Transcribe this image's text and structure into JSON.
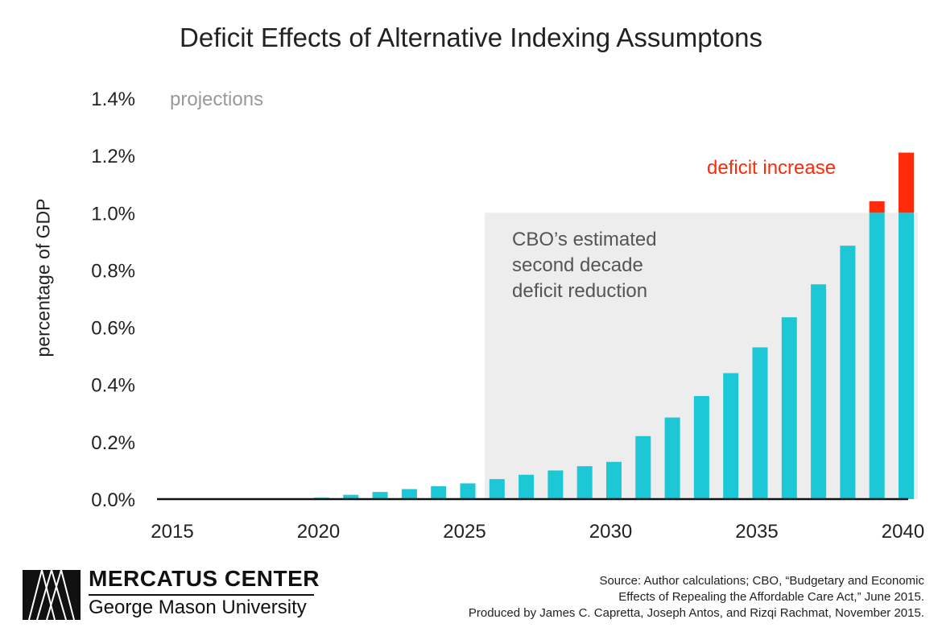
{
  "chart_data": {
    "type": "bar",
    "title": "Deficit Effects of Alternative Indexing Assumptons",
    "ylabel": "percentage of GDP",
    "xlabel": "",
    "ylim": [
      0,
      1.4
    ],
    "yticks": [
      "0.0%",
      "0.2%",
      "0.4%",
      "0.6%",
      "0.8%",
      "1.0%",
      "1.2%",
      "1.4%"
    ],
    "xticks": [
      "2015",
      "2020",
      "2025",
      "2030",
      "2035",
      "2040"
    ],
    "categories": [
      2015,
      2016,
      2017,
      2018,
      2019,
      2020,
      2021,
      2022,
      2023,
      2024,
      2025,
      2026,
      2027,
      2028,
      2029,
      2030,
      2031,
      2032,
      2033,
      2034,
      2035,
      2036,
      2037,
      2038,
      2039,
      2040
    ],
    "series": [
      {
        "values": [
          0,
          0,
          0,
          0,
          0,
          0.005,
          0.015,
          0.025,
          0.035,
          0.045,
          0.055,
          0.07,
          0.085,
          0.1,
          0.115,
          0.13,
          0.22,
          0.285,
          0.36,
          0.44,
          0.53,
          0.635,
          0.75,
          0.885,
          1.0,
          1.0
        ],
        "color": "#1cc8d6"
      },
      {
        "name": "deficit increase",
        "values": [
          0,
          0,
          0,
          0,
          0,
          0,
          0,
          0,
          0,
          0,
          0,
          0,
          0,
          0,
          0,
          0,
          0,
          0,
          0,
          0,
          0,
          0,
          0,
          0,
          0.04,
          0.21
        ],
        "color": "#ff2a0a"
      }
    ],
    "shaded_region": {
      "x_start": 2026,
      "x_end": 2040,
      "y_top": 1.0,
      "color": "#ededed"
    },
    "annotations": {
      "projections": "projections",
      "region_label": [
        "CBO’s estimated",
        "second decade",
        "deficit reduction"
      ],
      "increase_label": "deficit increase"
    },
    "grid": false
  },
  "footer": {
    "logo_line1": "MERCATUS CENTER",
    "logo_line2": "George Mason University",
    "source_lines": [
      "Source: Author calculations; CBO, “Budgetary and Economic",
      "Effects of Repealing the Affordable Care Act,” June 2015.",
      "Produced by James C. Capretta, Joseph Antos, and Rizqi Rachmat, November 2015."
    ]
  }
}
